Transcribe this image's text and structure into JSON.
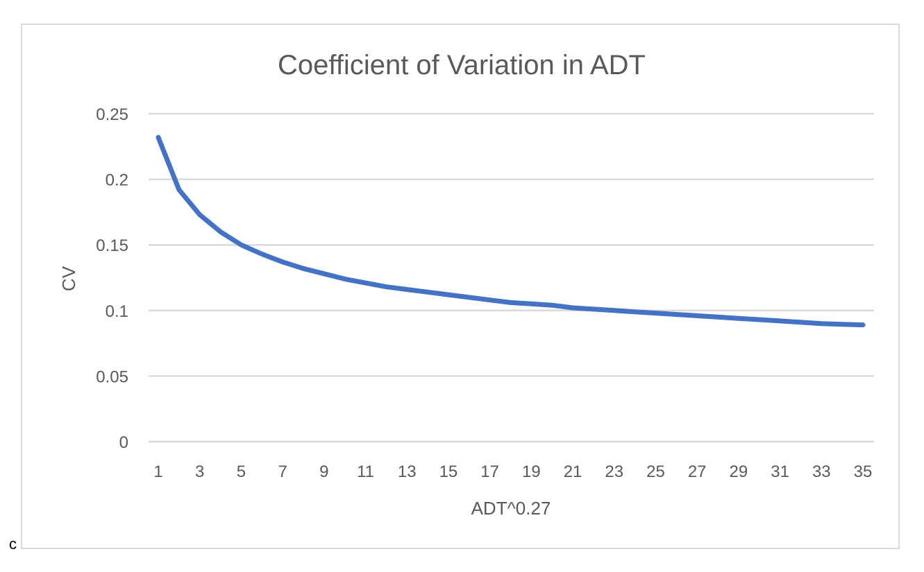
{
  "corner_label": "c",
  "colors": {
    "series": "#4472c4",
    "grid": "#d9d9d9",
    "text": "#595959",
    "frame": "#d9d9d9"
  },
  "chart_data": {
    "type": "line",
    "title": "Coefficient of Variation in ADT",
    "xlabel": "ADT^0.27",
    "ylabel": "CV",
    "x": [
      1,
      2,
      3,
      4,
      5,
      6,
      7,
      8,
      9,
      10,
      11,
      12,
      13,
      14,
      15,
      16,
      17,
      18,
      19,
      20,
      21,
      22,
      23,
      24,
      25,
      26,
      27,
      28,
      29,
      30,
      31,
      32,
      33,
      34,
      35
    ],
    "x_tick_labels": [
      "1",
      "3",
      "5",
      "7",
      "9",
      "11",
      "13",
      "15",
      "17",
      "19",
      "21",
      "23",
      "25",
      "27",
      "29",
      "31",
      "33",
      "35"
    ],
    "ylim": [
      0,
      0.25
    ],
    "y_ticks": [
      0,
      0.05,
      0.1,
      0.15,
      0.2,
      0.25
    ],
    "y_tick_labels": [
      "0",
      "0.05",
      "0.1",
      "0.15",
      "0.2",
      "0.25"
    ],
    "grid": true,
    "legend": false,
    "series": [
      {
        "values": [
          0.232,
          0.192,
          0.173,
          0.16,
          0.15,
          0.143,
          0.137,
          0.132,
          0.128,
          0.124,
          0.121,
          0.118,
          0.116,
          0.114,
          0.112,
          0.11,
          0.108,
          0.106,
          0.105,
          0.104,
          0.102,
          0.101,
          0.1,
          0.099,
          0.098,
          0.097,
          0.096,
          0.095,
          0.094,
          0.093,
          0.092,
          0.091,
          0.09,
          0.0895,
          0.089
        ]
      }
    ]
  }
}
